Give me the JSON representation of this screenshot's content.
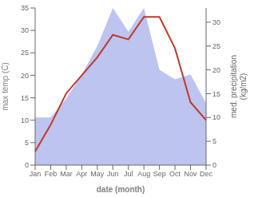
{
  "chart_data": {
    "type": "line",
    "categories": [
      "Jan",
      "Feb",
      "Mar",
      "Apr",
      "May",
      "Jun",
      "Jul",
      "Aug",
      "Sep",
      "Oct",
      "Nov",
      "Dec"
    ],
    "xlabel": "date (month)",
    "ylabel": "max temp (C)",
    "y2label": "med. precipitation\n(kg/m2)",
    "ylim": [
      0,
      35
    ],
    "yticks": [
      0,
      5,
      10,
      15,
      20,
      25,
      30,
      35
    ],
    "y2lim": [
      0,
      33
    ],
    "y2ticks": [
      0,
      5,
      10,
      15,
      20,
      25,
      30
    ],
    "series": [
      {
        "type": "area",
        "axis": "y2",
        "color": "#bdc4f0",
        "values": [
          10,
          10,
          14,
          19,
          25,
          33,
          28,
          33,
          20,
          18,
          19,
          13
        ]
      },
      {
        "type": "line",
        "color": "#c0392b",
        "values": [
          3,
          9,
          16,
          20,
          24,
          29,
          28,
          33,
          33,
          26,
          14,
          10
        ]
      }
    ]
  }
}
